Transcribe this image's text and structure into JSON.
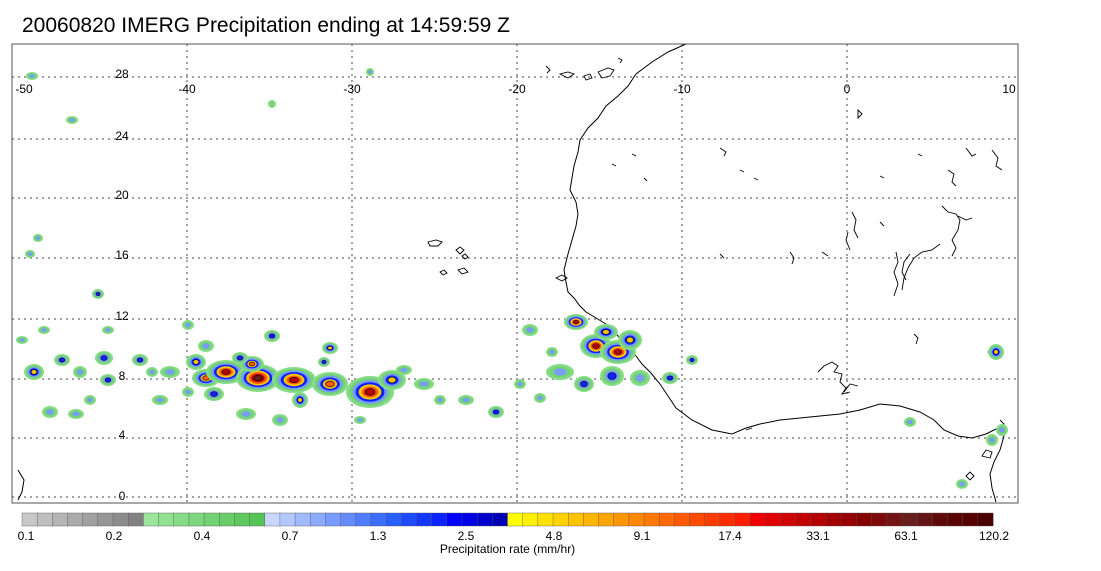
{
  "title": "20060820 IMERG Precipitation ending at 14:59:59 Z",
  "map": {
    "lon_labels": [
      "-50",
      "-40",
      "-30",
      "-20",
      "-10",
      "0",
      "10"
    ],
    "lat_labels": [
      "28",
      "24",
      "20",
      "16",
      "12",
      "8",
      "4",
      "0"
    ],
    "extent": {
      "lon": [
        -50,
        10
      ],
      "lat": [
        -0.5,
        30.5
      ]
    },
    "gridlines": "dotted"
  },
  "colorbar": {
    "label": "Precipitation rate (mm/hr)",
    "tick_labels": [
      "0.1",
      "0.2",
      "0.4",
      "0.7",
      "1.3",
      "2.5",
      "4.8",
      "9.1",
      "17.4",
      "33.1",
      "63.1",
      "120.2"
    ],
    "colors": [
      "#c8c8c8",
      "#bebebe",
      "#b4b4b4",
      "#aaaaaa",
      "#a0a0a0",
      "#969696",
      "#8c8c8c",
      "#828282",
      "#9be69b",
      "#91e191",
      "#87dc87",
      "#7dd77d",
      "#73d273",
      "#69cd69",
      "#5fc85f",
      "#55c355",
      "#c8d7ff",
      "#b4c8ff",
      "#a0b9ff",
      "#8caaff",
      "#789bff",
      "#648cff",
      "#507dff",
      "#3c6eff",
      "#285fff",
      "#1e4bff",
      "#1437ff",
      "#0a23ff",
      "#0000ff",
      "#0000e6",
      "#0000cd",
      "#0000b4",
      "#ffff00",
      "#fff000",
      "#ffe100",
      "#ffd200",
      "#ffc300",
      "#ffb400",
      "#ffa500",
      "#ff9600",
      "#ff8700",
      "#ff7800",
      "#ff6900",
      "#ff5a00",
      "#ff4b00",
      "#ff3c00",
      "#ff2d00",
      "#ff1e00",
      "#f00000",
      "#e10000",
      "#d20000",
      "#c30000",
      "#b40000",
      "#a50000",
      "#960000",
      "#870000",
      "#7d0a0a",
      "#731414",
      "#691e1e",
      "#641414",
      "#5f0a0a",
      "#5a0505",
      "#550000",
      "#4b0000"
    ]
  }
}
